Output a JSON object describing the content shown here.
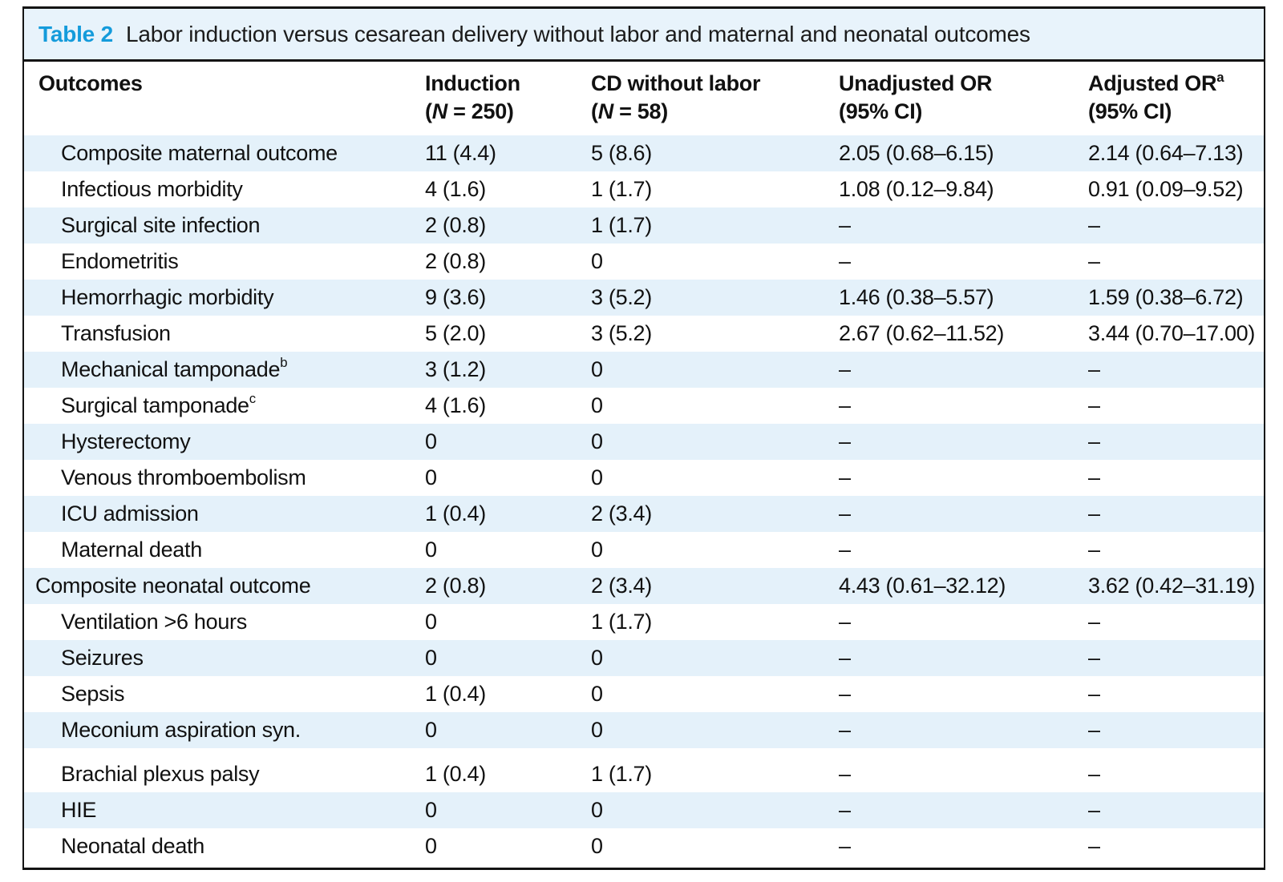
{
  "title": {
    "label": "Table 2",
    "text": "Labor induction versus cesarean delivery without labor and maternal and neonatal outcomes"
  },
  "columns": [
    {
      "line1": "Outcomes",
      "line2": ""
    },
    {
      "line1": "Induction",
      "line2": "(*N* = 250)"
    },
    {
      "line1": "CD without labor",
      "line2": "(*N* = 58)"
    },
    {
      "line1": "Unadjusted OR",
      "line2": "(95% CI)"
    },
    {
      "line1": "Adjusted OR^a",
      "line2": "(95% CI)"
    }
  ],
  "rows": [
    {
      "outcome": "Composite maternal outcome",
      "indent": true,
      "gap_before": false,
      "induction": "11 (4.4)",
      "cd": "5 (8.6)",
      "unadjusted": "2.05 (0.68–6.15)",
      "adjusted": "2.14 (0.64–7.13)"
    },
    {
      "outcome": "Infectious morbidity",
      "indent": true,
      "gap_before": false,
      "induction": "4 (1.6)",
      "cd": "1 (1.7)",
      "unadjusted": "1.08 (0.12–9.84)",
      "adjusted": "0.91 (0.09–9.52)"
    },
    {
      "outcome": "Surgical site infection",
      "indent": true,
      "gap_before": false,
      "induction": "2 (0.8)",
      "cd": "1 (1.7)",
      "unadjusted": "–",
      "adjusted": "–"
    },
    {
      "outcome": "Endometritis",
      "indent": true,
      "gap_before": false,
      "induction": "2 (0.8)",
      "cd": "0",
      "unadjusted": "–",
      "adjusted": "–"
    },
    {
      "outcome": "Hemorrhagic morbidity",
      "indent": true,
      "gap_before": false,
      "induction": "9 (3.6)",
      "cd": "3 (5.2)",
      "unadjusted": "1.46 (0.38–5.57)",
      "adjusted": "1.59 (0.38–6.72)"
    },
    {
      "outcome": "Transfusion",
      "indent": true,
      "gap_before": false,
      "induction": "5 (2.0)",
      "cd": "3 (5.2)",
      "unadjusted": "2.67 (0.62–11.52)",
      "adjusted": "3.44 (0.70–17.00)"
    },
    {
      "outcome": "Mechanical tamponade^b",
      "indent": true,
      "gap_before": false,
      "induction": "3 (1.2)",
      "cd": "0",
      "unadjusted": "–",
      "adjusted": "–"
    },
    {
      "outcome": "Surgical tamponade^c",
      "indent": true,
      "gap_before": false,
      "induction": "4 (1.6)",
      "cd": "0",
      "unadjusted": "–",
      "adjusted": "–"
    },
    {
      "outcome": "Hysterectomy",
      "indent": true,
      "gap_before": false,
      "induction": "0",
      "cd": "0",
      "unadjusted": "–",
      "adjusted": "–"
    },
    {
      "outcome": "Venous thromboembolism",
      "indent": true,
      "gap_before": false,
      "induction": "0",
      "cd": "0",
      "unadjusted": "–",
      "adjusted": "–"
    },
    {
      "outcome": "ICU admission",
      "indent": true,
      "gap_before": false,
      "induction": "1 (0.4)",
      "cd": "2 (3.4)",
      "unadjusted": "–",
      "adjusted": "–"
    },
    {
      "outcome": "Maternal death",
      "indent": true,
      "gap_before": false,
      "induction": "0",
      "cd": "0",
      "unadjusted": "–",
      "adjusted": "–"
    },
    {
      "outcome": "Composite neonatal outcome",
      "indent": false,
      "gap_before": false,
      "induction": "2 (0.8)",
      "cd": "2 (3.4)",
      "unadjusted": "4.43 (0.61–32.12)",
      "adjusted": "3.62 (0.42–31.19)"
    },
    {
      "outcome": "Ventilation >6 hours",
      "indent": true,
      "gap_before": false,
      "induction": "0",
      "cd": "1 (1.7)",
      "unadjusted": "–",
      "adjusted": "–"
    },
    {
      "outcome": "Seizures",
      "indent": true,
      "gap_before": false,
      "induction": "0",
      "cd": "0",
      "unadjusted": "–",
      "adjusted": "–"
    },
    {
      "outcome": "Sepsis",
      "indent": true,
      "gap_before": false,
      "induction": "1 (0.4)",
      "cd": "0",
      "unadjusted": "–",
      "adjusted": "–"
    },
    {
      "outcome": "Meconium aspiration syn.",
      "indent": true,
      "gap_before": false,
      "induction": "0",
      "cd": "0",
      "unadjusted": "–",
      "adjusted": "–"
    },
    {
      "outcome": "Brachial plexus palsy",
      "indent": true,
      "gap_before": true,
      "induction": "1 (0.4)",
      "cd": "1 (1.7)",
      "unadjusted": "–",
      "adjusted": "–"
    },
    {
      "outcome": "HIE",
      "indent": true,
      "gap_before": false,
      "induction": "0",
      "cd": "0",
      "unadjusted": "–",
      "adjusted": "–"
    },
    {
      "outcome": "Neonatal death",
      "indent": true,
      "gap_before": false,
      "induction": "0",
      "cd": "0",
      "unadjusted": "–",
      "adjusted": "–"
    }
  ],
  "colors": {
    "accent": "#149bdb",
    "stripe": "#e4f1fa",
    "title_bg": "#e8f3fb"
  }
}
